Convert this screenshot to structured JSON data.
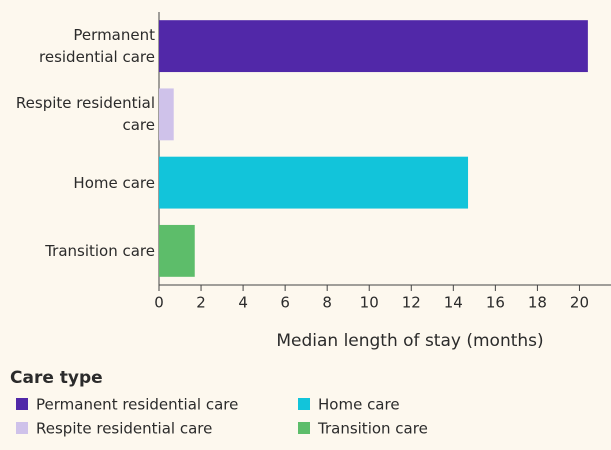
{
  "chart_data": {
    "type": "barh",
    "categories": [
      "Permanent residential care",
      "Respite residential care",
      "Home care",
      "Transition care"
    ],
    "values": [
      20.4,
      0.7,
      14.7,
      1.7
    ],
    "colors": [
      "#5128a8",
      "#cfc2ea",
      "#12c4da",
      "#5dbd6a"
    ],
    "xlabel": "Median length of stay (months)",
    "xlim": [
      0,
      21.5
    ],
    "xticks": [
      0,
      2,
      4,
      6,
      8,
      10,
      12,
      14,
      16,
      18,
      20
    ],
    "legend_title": "Care type"
  }
}
